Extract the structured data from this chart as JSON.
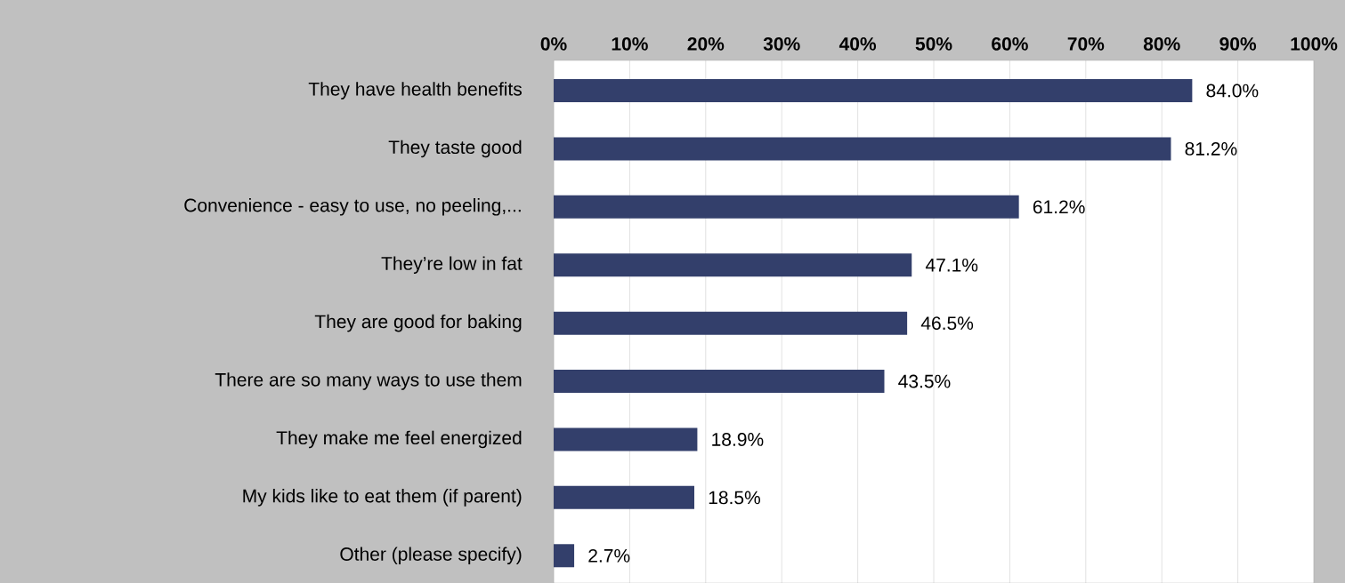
{
  "chart_data": {
    "type": "bar",
    "orientation": "horizontal",
    "categories": [
      "They have health benefits",
      "They taste good",
      "Convenience - easy to use, no peeling,...",
      "They’re low in fat",
      "They are good for baking",
      "There are so many ways to use them",
      "They make me feel energized",
      "My kids like to eat them (if parent)",
      "Other (please specify)"
    ],
    "values": [
      84.0,
      81.2,
      61.2,
      47.1,
      46.5,
      43.5,
      18.9,
      18.5,
      2.7
    ],
    "value_labels": [
      "84.0%",
      "81.2%",
      "61.2%",
      "47.1%",
      "46.5%",
      "43.5%",
      "18.9%",
      "18.5%",
      "2.7%"
    ],
    "color": "#333f6b",
    "xlim": [
      0,
      100
    ],
    "xticks": [
      {
        "value": 0,
        "label": "0%"
      },
      {
        "value": 10,
        "label": "10%"
      },
      {
        "value": 20,
        "label": "20%"
      },
      {
        "value": 30,
        "label": "30%"
      },
      {
        "value": 40,
        "label": "40%"
      },
      {
        "value": 50,
        "label": "50%"
      },
      {
        "value": 60,
        "label": "60%"
      },
      {
        "value": 70,
        "label": "70%"
      },
      {
        "value": 80,
        "label": "80%"
      },
      {
        "value": 90,
        "label": "90%"
      },
      {
        "value": 100,
        "label": "100%"
      }
    ],
    "grid": "x"
  }
}
